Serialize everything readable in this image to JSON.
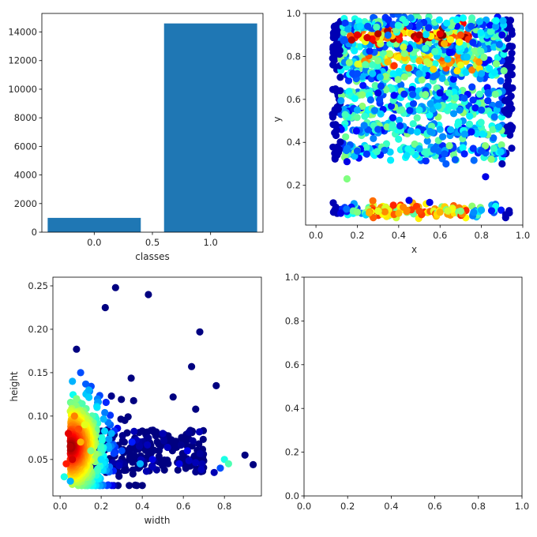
{
  "chart_data": [
    {
      "type": "bar",
      "xlabel": "classes",
      "ylabel": "",
      "x": [
        0.0,
        1.0
      ],
      "values": [
        1000,
        14600
      ],
      "bar_width": 0.8,
      "xlim": [
        -0.45,
        1.45
      ],
      "ylim": [
        0,
        15300
      ],
      "xticks": [
        0.0,
        0.5,
        1.0
      ],
      "xtick_labels": [
        "0.0",
        "0.5",
        "1.0"
      ],
      "yticks": [
        0,
        2000,
        4000,
        6000,
        8000,
        10000,
        12000,
        14000
      ],
      "ytick_labels": [
        "0",
        "2000",
        "4000",
        "6000",
        "8000",
        "10000",
        "12000",
        "14000"
      ],
      "color": "#1f77b4",
      "grid": false
    },
    {
      "type": "scatter",
      "xlabel": "x",
      "ylabel": "y",
      "xlim": [
        -0.05,
        1.0
      ],
      "ylim": [
        0.015,
        1.0
      ],
      "xticks": [
        0.0,
        0.2,
        0.4,
        0.6,
        0.8,
        1.0
      ],
      "xtick_labels": [
        "0.0",
        "0.2",
        "0.4",
        "0.6",
        "0.8",
        "1.0"
      ],
      "yticks": [
        0.2,
        0.4,
        0.6,
        0.8,
        1.0
      ],
      "ytick_labels": [
        "0.2",
        "0.4",
        "0.6",
        "0.8",
        "1.0"
      ],
      "colormap": "jet",
      "colorscale": "point density",
      "bands_y": [
        0.08,
        0.36,
        0.46,
        0.55,
        0.63,
        0.72,
        0.78,
        0.84,
        0.9,
        0.945
      ],
      "x_extent": [
        0.08,
        0.95
      ],
      "points": [
        [
          0.12,
          0.07,
          0.1
        ],
        [
          0.2,
          0.075,
          0.5
        ],
        [
          0.3,
          0.08,
          0.6
        ],
        [
          0.4,
          0.07,
          0.7
        ],
        [
          0.5,
          0.08,
          0.8
        ],
        [
          0.6,
          0.075,
          0.7
        ],
        [
          0.7,
          0.08,
          0.5
        ],
        [
          0.8,
          0.085,
          0.3
        ],
        [
          0.45,
          0.13,
          0.1
        ],
        [
          0.55,
          0.12,
          0.1
        ],
        [
          0.15,
          0.23,
          0.5
        ],
        [
          0.82,
          0.24,
          0.1
        ],
        [
          0.1,
          0.9,
          0.05
        ],
        [
          0.2,
          0.9,
          0.9
        ],
        [
          0.3,
          0.905,
          0.95
        ],
        [
          0.5,
          0.9,
          0.95
        ],
        [
          0.6,
          0.905,
          0.9
        ],
        [
          0.7,
          0.9,
          0.8
        ],
        [
          0.9,
          0.9,
          0.1
        ],
        [
          0.25,
          0.94,
          0.2
        ],
        [
          0.5,
          0.945,
          0.2
        ],
        [
          0.75,
          0.94,
          0.2
        ],
        [
          0.3,
          0.78,
          0.5
        ],
        [
          0.5,
          0.78,
          0.7
        ],
        [
          0.7,
          0.76,
          0.6
        ],
        [
          0.2,
          0.72,
          0.2
        ],
        [
          0.5,
          0.72,
          0.3
        ],
        [
          0.8,
          0.72,
          0.3
        ],
        [
          0.3,
          0.63,
          0.1
        ],
        [
          0.6,
          0.63,
          0.1
        ],
        [
          0.2,
          0.55,
          0.3
        ],
        [
          0.5,
          0.55,
          0.4
        ],
        [
          0.8,
          0.55,
          0.2
        ],
        [
          0.3,
          0.46,
          0.2
        ],
        [
          0.6,
          0.46,
          0.3
        ],
        [
          0.2,
          0.36,
          0.2
        ],
        [
          0.5,
          0.37,
          0.3
        ],
        [
          0.8,
          0.36,
          0.2
        ],
        [
          0.9,
          0.3,
          0.05
        ],
        [
          0.15,
          0.31,
          0.1
        ]
      ]
    },
    {
      "type": "scatter",
      "xlabel": "width",
      "ylabel": "height",
      "xlim": [
        -0.035,
        0.98
      ],
      "ylim": [
        0.008,
        0.26
      ],
      "xticks": [
        0.0,
        0.2,
        0.4,
        0.6,
        0.8
      ],
      "xtick_labels": [
        "0.0",
        "0.2",
        "0.4",
        "0.6",
        "0.8"
      ],
      "yticks": [
        0.05,
        0.1,
        0.15,
        0.2,
        0.25
      ],
      "ytick_labels": [
        "0.05",
        "0.10",
        "0.15",
        "0.20",
        "0.25"
      ],
      "colormap": "jet",
      "colorscale": "point density",
      "cluster_center": [
        0.05,
        0.065
      ],
      "points": [
        [
          0.27,
          0.248,
          0.0
        ],
        [
          0.22,
          0.225,
          0.0
        ],
        [
          0.43,
          0.24,
          0.0
        ],
        [
          0.68,
          0.197,
          0.0
        ],
        [
          0.64,
          0.157,
          0.0
        ],
        [
          0.08,
          0.177,
          0.0
        ],
        [
          0.76,
          0.135,
          0.0
        ],
        [
          0.55,
          0.122,
          0.0
        ],
        [
          0.66,
          0.108,
          0.0
        ],
        [
          0.9,
          0.055,
          0.0
        ],
        [
          0.94,
          0.044,
          0.0
        ],
        [
          0.8,
          0.05,
          0.4
        ],
        [
          0.82,
          0.045,
          0.45
        ],
        [
          0.78,
          0.04,
          0.2
        ],
        [
          0.62,
          0.06,
          0.1
        ],
        [
          0.58,
          0.045,
          0.1
        ],
        [
          0.75,
          0.035,
          0.05
        ],
        [
          0.39,
          0.045,
          0.3
        ],
        [
          0.05,
          0.065,
          0.95
        ],
        [
          0.04,
          0.08,
          0.9
        ],
        [
          0.06,
          0.05,
          0.92
        ],
        [
          0.03,
          0.045,
          0.85
        ],
        [
          0.1,
          0.07,
          0.7
        ],
        [
          0.12,
          0.09,
          0.6
        ],
        [
          0.15,
          0.06,
          0.5
        ],
        [
          0.2,
          0.05,
          0.35
        ],
        [
          0.25,
          0.08,
          0.3
        ],
        [
          0.3,
          0.06,
          0.2
        ],
        [
          0.35,
          0.07,
          0.15
        ],
        [
          0.45,
          0.05,
          0.1
        ],
        [
          0.5,
          0.08,
          0.05
        ],
        [
          0.02,
          0.03,
          0.4
        ],
        [
          0.05,
          0.025,
          0.3
        ],
        [
          0.08,
          0.12,
          0.5
        ],
        [
          0.1,
          0.15,
          0.2
        ],
        [
          0.14,
          0.13,
          0.3
        ],
        [
          0.18,
          0.11,
          0.35
        ],
        [
          0.06,
          0.14,
          0.3
        ],
        [
          0.07,
          0.1,
          0.75
        ],
        [
          0.09,
          0.085,
          0.8
        ]
      ]
    },
    {
      "type": "scatter",
      "xlabel": "",
      "ylabel": "",
      "xlim": [
        0.0,
        1.0
      ],
      "ylim": [
        0.0,
        1.0
      ],
      "xticks": [
        0.0,
        0.2,
        0.4,
        0.6,
        0.8,
        1.0
      ],
      "xtick_labels": [
        "0.0",
        "0.2",
        "0.4",
        "0.6",
        "0.8",
        "1.0"
      ],
      "yticks": [
        0.0,
        0.2,
        0.4,
        0.6,
        0.8,
        1.0
      ],
      "ytick_labels": [
        "0.0",
        "0.2",
        "0.4",
        "0.6",
        "0.8",
        "1.0"
      ],
      "points": []
    }
  ]
}
